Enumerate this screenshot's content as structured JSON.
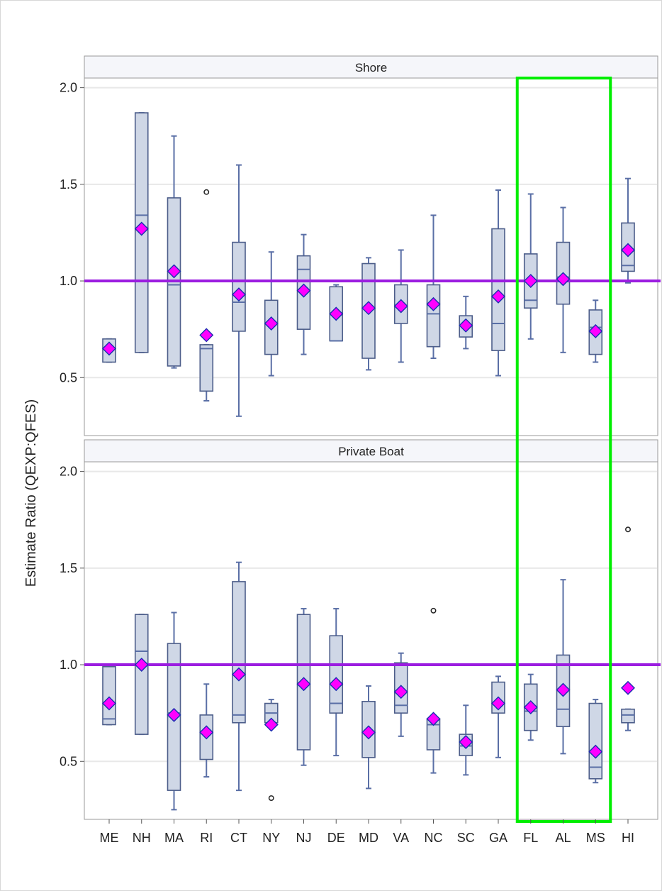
{
  "chart_data": {
    "type": "box",
    "ylabel": "Estimate Ratio (QEXP:QFES)",
    "ylim": [
      0.2,
      2.05
    ],
    "y_ticks": [
      "0.5",
      "1.0",
      "1.5",
      "2.0"
    ],
    "y_tick_values": [
      0.5,
      1.0,
      1.5,
      2.0
    ],
    "categories": [
      "ME",
      "NH",
      "MA",
      "RI",
      "CT",
      "NY",
      "NJ",
      "DE",
      "MD",
      "VA",
      "NC",
      "SC",
      "GA",
      "FL",
      "AL",
      "MS",
      "HI"
    ],
    "reference_line": 1.0,
    "highlight_categories": [
      "FL",
      "AL",
      "MS"
    ],
    "colors": {
      "box_fill": "#cfd7e6",
      "box_stroke": "#4d5e8a",
      "whisker": "#5a6fa6",
      "mean_marker": "#ff00ff",
      "reference_line": "#9b1de0",
      "highlight": "#00ee00",
      "grid": "#e8e8e8"
    },
    "panels": [
      {
        "title": "Shore",
        "stats": [
          {
            "category": "ME",
            "q1": 0.58,
            "median": 0.65,
            "q3": 0.7,
            "whisker_low": 0.58,
            "whisker_high": 0.7,
            "mean": 0.65,
            "outliers": []
          },
          {
            "category": "NH",
            "q1": 0.63,
            "median": 1.34,
            "q3": 1.87,
            "whisker_low": 0.63,
            "whisker_high": 1.87,
            "mean": 1.27,
            "outliers": []
          },
          {
            "category": "MA",
            "q1": 0.56,
            "median": 0.98,
            "q3": 1.43,
            "whisker_low": 0.55,
            "whisker_high": 1.75,
            "mean": 1.05,
            "outliers": []
          },
          {
            "category": "RI",
            "q1": 0.43,
            "median": 0.65,
            "q3": 0.67,
            "whisker_low": 0.38,
            "whisker_high": 0.67,
            "mean": 0.72,
            "outliers": [
              1.46
            ]
          },
          {
            "category": "CT",
            "q1": 0.74,
            "median": 0.89,
            "q3": 1.2,
            "whisker_low": 0.3,
            "whisker_high": 1.6,
            "mean": 0.93,
            "outliers": []
          },
          {
            "category": "NY",
            "q1": 0.62,
            "median": 0.78,
            "q3": 0.9,
            "whisker_low": 0.51,
            "whisker_high": 1.15,
            "mean": 0.78,
            "outliers": []
          },
          {
            "category": "NJ",
            "q1": 0.75,
            "median": 1.06,
            "q3": 1.13,
            "whisker_low": 0.62,
            "whisker_high": 1.24,
            "mean": 0.95,
            "outliers": []
          },
          {
            "category": "DE",
            "q1": 0.69,
            "median": 0.69,
            "q3": 0.97,
            "whisker_low": 0.69,
            "whisker_high": 0.98,
            "mean": 0.83,
            "outliers": []
          },
          {
            "category": "MD",
            "q1": 0.6,
            "median": 0.86,
            "q3": 1.09,
            "whisker_low": 0.54,
            "whisker_high": 1.12,
            "mean": 0.86,
            "outliers": []
          },
          {
            "category": "VA",
            "q1": 0.78,
            "median": 0.87,
            "q3": 0.98,
            "whisker_low": 0.58,
            "whisker_high": 1.16,
            "mean": 0.87,
            "outliers": []
          },
          {
            "category": "NC",
            "q1": 0.66,
            "median": 0.83,
            "q3": 0.98,
            "whisker_low": 0.6,
            "whisker_high": 1.34,
            "mean": 0.88,
            "outliers": []
          },
          {
            "category": "SC",
            "q1": 0.71,
            "median": 0.77,
            "q3": 0.82,
            "whisker_low": 0.65,
            "whisker_high": 0.92,
            "mean": 0.77,
            "outliers": []
          },
          {
            "category": "GA",
            "q1": 0.64,
            "median": 0.78,
            "q3": 1.27,
            "whisker_low": 0.51,
            "whisker_high": 1.47,
            "mean": 0.92,
            "outliers": []
          },
          {
            "category": "FL",
            "q1": 0.86,
            "median": 0.9,
            "q3": 1.14,
            "whisker_low": 0.7,
            "whisker_high": 1.45,
            "mean": 1.0,
            "outliers": []
          },
          {
            "category": "AL",
            "q1": 0.88,
            "median": 1.02,
            "q3": 1.2,
            "whisker_low": 0.63,
            "whisker_high": 1.38,
            "mean": 1.01,
            "outliers": []
          },
          {
            "category": "MS",
            "q1": 0.62,
            "median": 0.76,
            "q3": 0.85,
            "whisker_low": 0.58,
            "whisker_high": 0.9,
            "mean": 0.74,
            "outliers": []
          },
          {
            "category": "HI",
            "q1": 1.05,
            "median": 1.08,
            "q3": 1.3,
            "whisker_low": 0.99,
            "whisker_high": 1.53,
            "mean": 1.16,
            "outliers": []
          }
        ]
      },
      {
        "title": "Private Boat",
        "stats": [
          {
            "category": "ME",
            "q1": 0.69,
            "median": 0.72,
            "q3": 0.99,
            "whisker_low": 0.69,
            "whisker_high": 0.99,
            "mean": 0.8,
            "outliers": []
          },
          {
            "category": "NH",
            "q1": 0.64,
            "median": 1.07,
            "q3": 1.26,
            "whisker_low": 0.64,
            "whisker_high": 1.26,
            "mean": 1.0,
            "outliers": []
          },
          {
            "category": "MA",
            "q1": 0.35,
            "median": 0.75,
            "q3": 1.11,
            "whisker_low": 0.25,
            "whisker_high": 1.27,
            "mean": 0.74,
            "outliers": []
          },
          {
            "category": "RI",
            "q1": 0.51,
            "median": 0.65,
            "q3": 0.74,
            "whisker_low": 0.42,
            "whisker_high": 0.9,
            "mean": 0.65,
            "outliers": []
          },
          {
            "category": "CT",
            "q1": 0.7,
            "median": 0.74,
            "q3": 1.43,
            "whisker_low": 0.35,
            "whisker_high": 1.53,
            "mean": 0.95,
            "outliers": []
          },
          {
            "category": "NY",
            "q1": 0.7,
            "median": 0.75,
            "q3": 0.8,
            "whisker_low": 0.7,
            "whisker_high": 0.82,
            "mean": 0.69,
            "outliers": [
              0.31
            ]
          },
          {
            "category": "NJ",
            "q1": 0.56,
            "median": 0.9,
            "q3": 1.26,
            "whisker_low": 0.48,
            "whisker_high": 1.29,
            "mean": 0.9,
            "outliers": []
          },
          {
            "category": "DE",
            "q1": 0.75,
            "median": 0.8,
            "q3": 1.15,
            "whisker_low": 0.53,
            "whisker_high": 1.29,
            "mean": 0.9,
            "outliers": []
          },
          {
            "category": "MD",
            "q1": 0.52,
            "median": 0.65,
            "q3": 0.81,
            "whisker_low": 0.36,
            "whisker_high": 0.89,
            "mean": 0.65,
            "outliers": []
          },
          {
            "category": "VA",
            "q1": 0.75,
            "median": 0.79,
            "q3": 1.01,
            "whisker_low": 0.63,
            "whisker_high": 1.06,
            "mean": 0.86,
            "outliers": []
          },
          {
            "category": "NC",
            "q1": 0.56,
            "median": 0.69,
            "q3": 0.72,
            "whisker_low": 0.44,
            "whisker_high": 0.72,
            "mean": 0.72,
            "outliers": [
              1.28
            ]
          },
          {
            "category": "SC",
            "q1": 0.53,
            "median": 0.58,
            "q3": 0.64,
            "whisker_low": 0.43,
            "whisker_high": 0.79,
            "mean": 0.6,
            "outliers": []
          },
          {
            "category": "GA",
            "q1": 0.75,
            "median": 0.8,
            "q3": 0.91,
            "whisker_low": 0.52,
            "whisker_high": 0.94,
            "mean": 0.8,
            "outliers": []
          },
          {
            "category": "FL",
            "q1": 0.66,
            "median": 0.76,
            "q3": 0.9,
            "whisker_low": 0.61,
            "whisker_high": 0.95,
            "mean": 0.78,
            "outliers": []
          },
          {
            "category": "AL",
            "q1": 0.68,
            "median": 0.77,
            "q3": 1.05,
            "whisker_low": 0.54,
            "whisker_high": 1.44,
            "mean": 0.87,
            "outliers": []
          },
          {
            "category": "MS",
            "q1": 0.41,
            "median": 0.47,
            "q3": 0.8,
            "whisker_low": 0.39,
            "whisker_high": 0.82,
            "mean": 0.55,
            "outliers": []
          },
          {
            "category": "HI",
            "q1": 0.7,
            "median": 0.74,
            "q3": 0.77,
            "whisker_low": 0.66,
            "whisker_high": 0.77,
            "mean": 0.88,
            "outliers": [
              1.7
            ]
          }
        ]
      }
    ]
  }
}
